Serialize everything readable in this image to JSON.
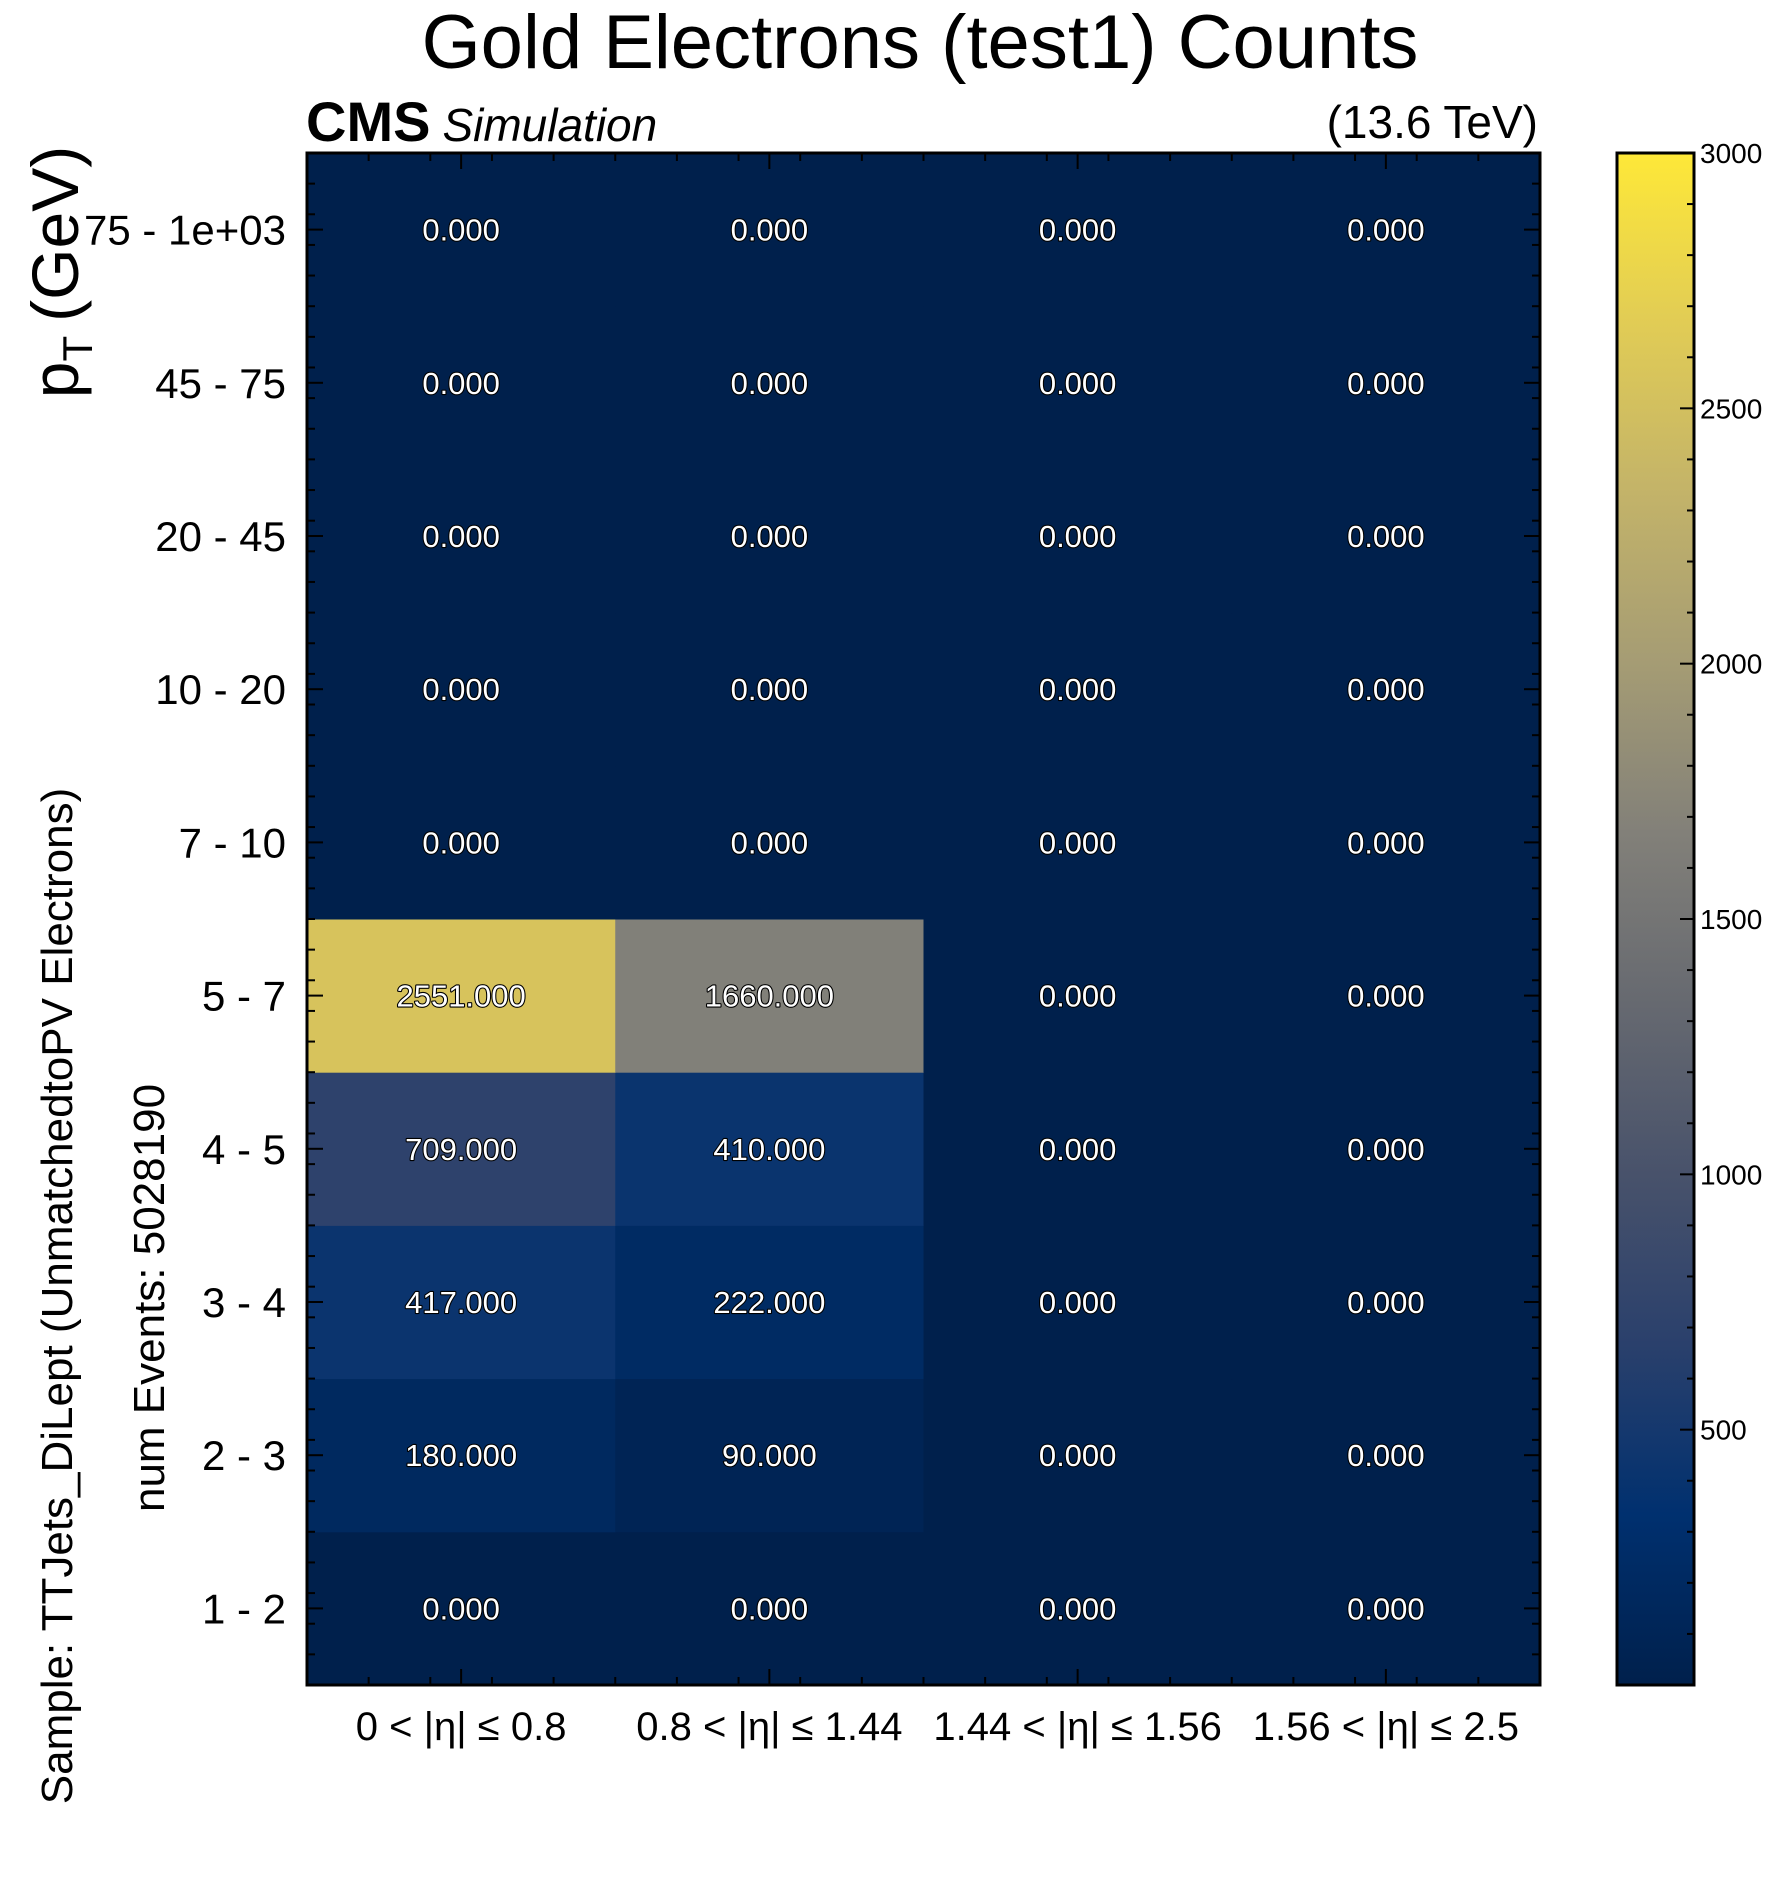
{
  "chart_data": {
    "type": "heatmap",
    "title": "Gold Electrons (test1) Counts",
    "experiment_label": "CMS",
    "experiment_sublabel": "Simulation",
    "energy_label": "(13.6 TeV)",
    "ylabel_main": "p",
    "ylabel_sub": "T",
    "ylabel_unit": "(GeV)",
    "sample_label": "Sample: TTJets_DiLept (UnmatchedtoPV Electrons)",
    "events_label": "num Events: 5028190",
    "x_categories": [
      "0  < |η| ≤  0.8",
      "0.8  < |η| ≤  1.44",
      "1.44  < |η| ≤  1.56",
      "1.56  < |η| ≤  2.5"
    ],
    "y_categories": [
      "1 - 2",
      "2 - 3",
      "3 - 4",
      "4 - 5",
      "5 - 7",
      "7 - 10",
      "10 - 20",
      "20 - 45",
      "45 - 75",
      "75 - 1e+03"
    ],
    "values": [
      [
        0,
        0,
        0,
        0
      ],
      [
        180,
        90,
        0,
        0
      ],
      [
        417,
        222,
        0,
        0
      ],
      [
        709,
        410,
        0,
        0
      ],
      [
        2551,
        1660,
        0,
        0
      ],
      [
        0,
        0,
        0,
        0
      ],
      [
        0,
        0,
        0,
        0
      ],
      [
        0,
        0,
        0,
        0
      ],
      [
        0,
        0,
        0,
        0
      ],
      [
        0,
        0,
        0,
        0
      ]
    ],
    "value_labels": [
      [
        "0.000",
        "0.000",
        "0.000",
        "0.000"
      ],
      [
        "180.000",
        "90.000",
        "0.000",
        "0.000"
      ],
      [
        "417.000",
        "222.000",
        "0.000",
        "0.000"
      ],
      [
        "709.000",
        "410.000",
        "0.000",
        "0.000"
      ],
      [
        "2551.000",
        "1660.000",
        "0.000",
        "0.000"
      ],
      [
        "0.000",
        "0.000",
        "0.000",
        "0.000"
      ],
      [
        "0.000",
        "0.000",
        "0.000",
        "0.000"
      ],
      [
        "0.000",
        "0.000",
        "0.000",
        "0.000"
      ],
      [
        "0.000",
        "0.000",
        "0.000",
        "0.000"
      ],
      [
        "0.000",
        "0.000",
        "0.000",
        "0.000"
      ]
    ],
    "colorbar": {
      "colormap": "cividis",
      "range": [
        0,
        3000
      ],
      "ticks": [
        500,
        1000,
        1500,
        2000,
        2500,
        3000
      ],
      "tick_labels": [
        "500",
        "1000",
        "1500",
        "2000",
        "2500",
        "3000"
      ]
    },
    "colors": {
      "colormap_stops": [
        "#00204c",
        "#00306f",
        "#2a406c",
        "#48526b",
        "#666970",
        "#828079",
        "#a59c74",
        "#c3b369",
        "#e1cc55",
        "#fee838"
      ]
    }
  }
}
